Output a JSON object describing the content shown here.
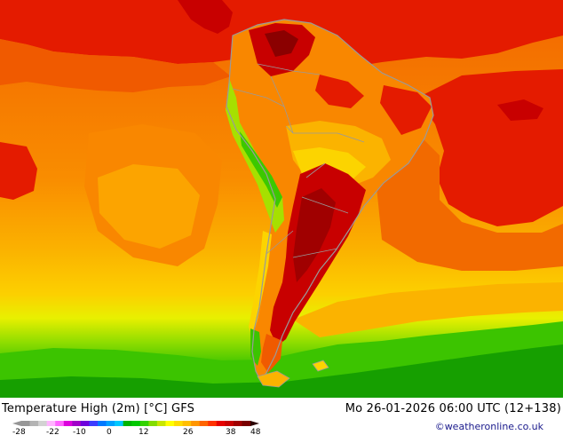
{
  "map": {
    "title": "Temperature High (2m) [°C] GFS",
    "valid_time": "Mo 26-01-2026 06:00 UTC (12+138)",
    "credit": "©weatheronline.co.uk",
    "colors": {
      "deep_red": "#c80000",
      "red": "#e41b00",
      "dark_orange": "#f05a00",
      "orange": "#f98700",
      "light_orange": "#fcb100",
      "yellow": "#fcd400",
      "pale_yellow": "#f7f000",
      "yellow_green": "#a6e000",
      "green": "#3cc800",
      "dark_green": "#15a800",
      "maroon": "#8b0000",
      "coast": "#9a9a9a"
    }
  },
  "legend": {
    "tick_labels": [
      "-28",
      "-22",
      "-10",
      "0",
      "12",
      "26",
      "38",
      "48"
    ],
    "colors": [
      "#969696",
      "#b4b4b4",
      "#d2d2d2",
      "#ffb4ff",
      "#ff64ff",
      "#dc00dc",
      "#a000c8",
      "#6e00dc",
      "#3c3cff",
      "#0078ff",
      "#00a0ff",
      "#00c8ff",
      "#00b400",
      "#00c800",
      "#32d200",
      "#82dc00",
      "#c8e600",
      "#ffff00",
      "#ffdc00",
      "#ffbe00",
      "#ff9600",
      "#ff6400",
      "#ff3200",
      "#e60000",
      "#c80000",
      "#a00000",
      "#780000"
    ]
  }
}
